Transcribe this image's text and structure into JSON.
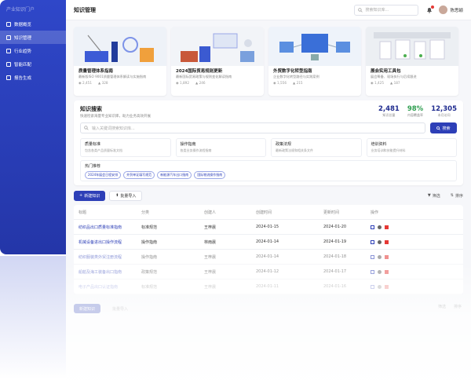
{
  "sidebar": {
    "brand": "产业知识门户",
    "items": [
      {
        "label": "数据概览",
        "icon": "dashboard-icon"
      },
      {
        "label": "知识管理",
        "icon": "document-icon",
        "active": true
      },
      {
        "label": "行业趋势",
        "icon": "trend-icon"
      },
      {
        "label": "智能匹配",
        "icon": "match-icon"
      },
      {
        "label": "报告生成",
        "icon": "report-icon"
      }
    ]
  },
  "topbar": {
    "title": "知识管理",
    "search_placeholder": "搜索知识库...",
    "username": "陈思颖"
  },
  "cards": [
    {
      "title": "质量管理体系指南",
      "desc": "最新版ISO 9001质量管理体系解读与实施指南",
      "views": "2,451",
      "likes": "328"
    },
    {
      "title": "2024国际贸易规则更新",
      "desc": "最新国际贸易政策与规则变化解读指南",
      "views": "1,892",
      "likes": "246"
    },
    {
      "title": "外贸数字化转型指南",
      "desc": "企业数字化转型路径与实践案例",
      "views": "1,556",
      "likes": "215"
    },
    {
      "title": "展会实用工具包",
      "desc": "展会筹备、现场执行与后续跟进",
      "views": "1,425",
      "likes": "187"
    }
  ],
  "search_panel": {
    "title": "知识搜索",
    "subtitle": "快速检索海量专业知识库，助力业务高效开展",
    "metrics": [
      {
        "value": "2,481",
        "label": "知识总量",
        "color": "#1f2b8f"
      },
      {
        "value": "98%",
        "label": "内容覆盖率",
        "color": "#2e9e4f"
      },
      {
        "value": "12,305",
        "label": "本月访问",
        "color": "#1f2b8f"
      }
    ],
    "input_placeholder": "输入关键词搜索知识库...",
    "search_button": "搜索",
    "categories": [
      {
        "title": "质量标准",
        "desc": "包含各类产品质量标准文档"
      },
      {
        "title": "操作指南",
        "desc": "各类业务操作流程指南"
      },
      {
        "title": "政策法规",
        "desc": "最新政策法规和相关条文件"
      },
      {
        "title": "培训资料",
        "desc": "业务培训和技能提升材料"
      }
    ],
    "hot_title": "热门推荐",
    "hot_tags": [
      "2024年展会日程安排",
      "外贸单证填写规范",
      "新能源汽车出口指南",
      "国际物流操作指南"
    ]
  },
  "toolbar": {
    "new_button": "新建知识",
    "import_button": "批量导入",
    "filter": "筛选",
    "sort": "排序"
  },
  "table": {
    "headers": [
      "标题",
      "分类",
      "创建人",
      "创建时间",
      "更新时间",
      "操作"
    ],
    "rows": [
      {
        "title": "纺织品出口质量标准指南",
        "category": "标准规范",
        "creator": "王梓晨",
        "created": "2024-01-15",
        "updated": "2024-01-20"
      },
      {
        "title": "机械设备进出口操作流程",
        "category": "操作指南",
        "creator": "林雨晨",
        "created": "2024-01-14",
        "updated": "2024-01-19"
      },
      {
        "title": "纺织服装类外贸注册流程",
        "category": "操作指南",
        "creator": "王梓晨",
        "created": "2024-01-14",
        "updated": "2024-01-18"
      },
      {
        "title": "船舶及海工装备出口指南",
        "category": "政策规范",
        "creator": "王梓晨",
        "created": "2024-01-12",
        "updated": "2024-01-17"
      },
      {
        "title": "电子产品出口认证指南",
        "category": "标准规范",
        "creator": "王梓晨",
        "created": "2024-01-11",
        "updated": "2024-01-16"
      }
    ]
  },
  "ghost": {
    "new_button": "新建知识",
    "import_button": "批量导入",
    "filter": "筛选",
    "sort": "排序"
  },
  "colors": {
    "brand": "#2d3fb7",
    "sidebar": "#2f47c9",
    "danger": "#e53935",
    "success": "#2e9e4f"
  }
}
